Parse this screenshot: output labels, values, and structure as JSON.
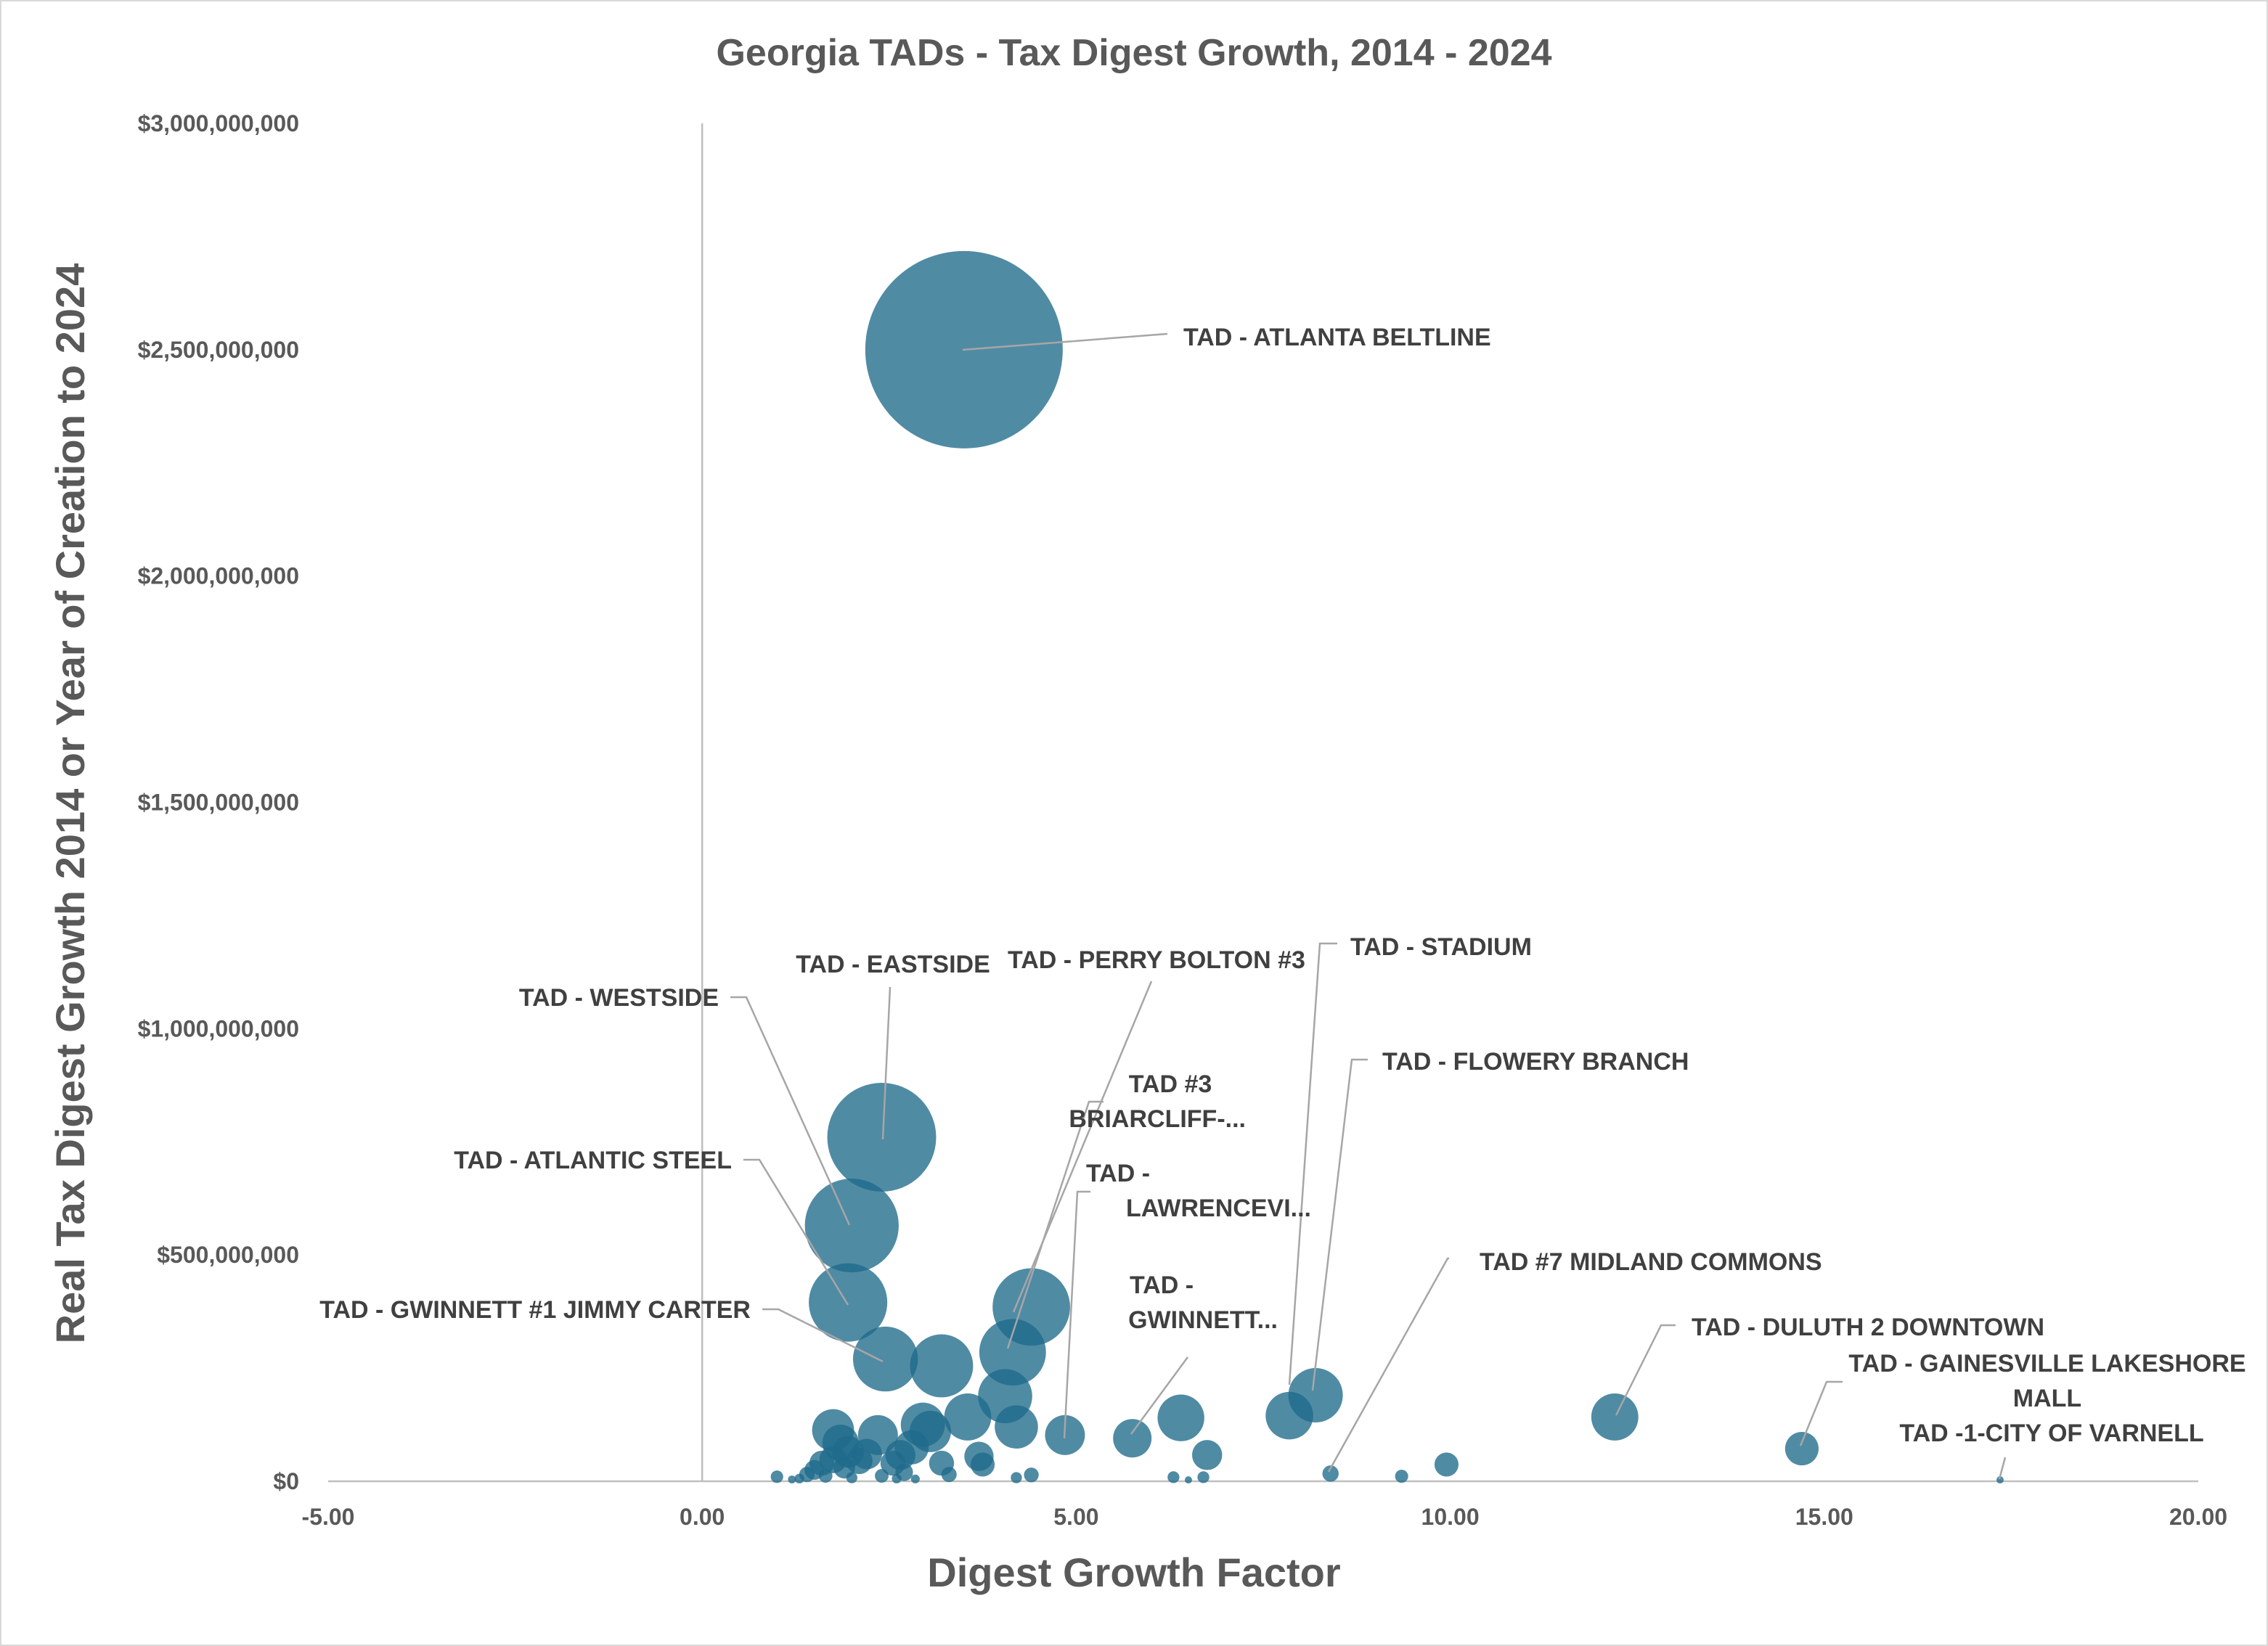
{
  "chart_data": {
    "type": "bubble",
    "title": "Georgia TADs - Tax Digest Growth, 2014 - 2024",
    "xlabel": "Digest Growth Factor",
    "ylabel": "Real Tax Digest Growth 2014 or Year of Creation to 2024",
    "xlim": [
      -5,
      20
    ],
    "ylim": [
      0,
      3000000000
    ],
    "x_ticks": [
      "-5.00",
      "0.00",
      "5.00",
      "10.00",
      "15.00",
      "20.00"
    ],
    "y_ticks": [
      "$0",
      "$500,000,000",
      "$1,000,000,000",
      "$1,500,000,000",
      "$2,000,000,000",
      "$2,500,000,000",
      "$3,000,000,000"
    ],
    "color": "#1f6a8a",
    "labeled_points": [
      {
        "label": "TAD - ATLANTA BELTLINE",
        "x": 3.5,
        "y": 2500000000,
        "size": 2500000000
      },
      {
        "label": "TAD - EASTSIDE",
        "x": 2.4,
        "y": 760000000,
        "size": 760000000
      },
      {
        "label": "TAD - WESTSIDE",
        "x": 2.0,
        "y": 565000000,
        "size": 565000000
      },
      {
        "label": "TAD - ATLANTIC STEEL",
        "x": 1.95,
        "y": 395000000,
        "size": 395000000
      },
      {
        "label": "TAD - GWINNETT #1 JIMMY CARTER",
        "x": 2.45,
        "y": 270000000,
        "size": 270000000
      },
      {
        "label": "TAD - PERRY BOLTON #3",
        "x": 4.4,
        "y": 385000000,
        "size": 385000000
      },
      {
        "label": "TAD #3 BRIARCLIFF-...",
        "x": 4.15,
        "y": 285000000,
        "size": 285000000
      },
      {
        "label": "TAD - LAWRENCEVI...",
        "x": 4.85,
        "y": 102000000,
        "size": 102000000
      },
      {
        "label": "TAD - GWINNETT...",
        "x": 5.75,
        "y": 95000000,
        "size": 95000000
      },
      {
        "label": "TAD - STADIUM",
        "x": 7.85,
        "y": 145000000,
        "size": 145000000
      },
      {
        "label": "TAD - FLOWERY BRANCH",
        "x": 8.2,
        "y": 190000000,
        "size": 190000000
      },
      {
        "label": "TAD #7 MIDLAND COMMONS",
        "x": 8.4,
        "y": 17000000,
        "size": 17000000
      },
      {
        "label": "TAD - DULUTH 2 DOWNTOWN",
        "x": 12.2,
        "y": 142000000,
        "size": 142000000
      },
      {
        "label": "TAD - GAINESVILLE LAKESHORE MALL",
        "x": 14.7,
        "y": 72000000,
        "size": 72000000
      },
      {
        "label": "TAD -1-CITY OF VARNELL",
        "x": 17.35,
        "y": 3000000,
        "size": 3000000
      }
    ],
    "other_points": [
      {
        "x": 3.2,
        "y": 255000000,
        "size": 255000000
      },
      {
        "x": 4.05,
        "y": 188000000,
        "size": 188000000
      },
      {
        "x": 4.2,
        "y": 120000000,
        "size": 120000000
      },
      {
        "x": 3.55,
        "y": 142000000,
        "size": 142000000
      },
      {
        "x": 6.4,
        "y": 140000000,
        "size": 140000000
      },
      {
        "x": 6.75,
        "y": 58000000,
        "size": 58000000
      },
      {
        "x": 9.95,
        "y": 37000000,
        "size": 37000000
      },
      {
        "x": 9.35,
        "y": 11000000,
        "size": 11000000
      },
      {
        "x": 6.3,
        "y": 9000000,
        "size": 9000000
      },
      {
        "x": 6.5,
        "y": 3000000,
        "size": 3000000
      },
      {
        "x": 6.7,
        "y": 9000000,
        "size": 9000000
      },
      {
        "x": 4.4,
        "y": 14000000,
        "size": 14000000
      },
      {
        "x": 4.2,
        "y": 8000000,
        "size": 8000000
      },
      {
        "x": 3.75,
        "y": 37000000,
        "size": 37000000
      },
      {
        "x": 3.7,
        "y": 55000000,
        "size": 55000000
      },
      {
        "x": 3.2,
        "y": 40000000,
        "size": 40000000
      },
      {
        "x": 3.3,
        "y": 15000000,
        "size": 15000000
      },
      {
        "x": 2.95,
        "y": 125000000,
        "size": 125000000
      },
      {
        "x": 3.05,
        "y": 110000000,
        "size": 110000000
      },
      {
        "x": 2.8,
        "y": 75000000,
        "size": 75000000
      },
      {
        "x": 2.65,
        "y": 58000000,
        "size": 58000000
      },
      {
        "x": 2.55,
        "y": 40000000,
        "size": 40000000
      },
      {
        "x": 2.7,
        "y": 20000000,
        "size": 20000000
      },
      {
        "x": 2.85,
        "y": 5000000,
        "size": 5000000
      },
      {
        "x": 2.35,
        "y": 102000000,
        "size": 102000000
      },
      {
        "x": 2.2,
        "y": 60000000,
        "size": 60000000
      },
      {
        "x": 1.75,
        "y": 113000000,
        "size": 113000000
      },
      {
        "x": 1.85,
        "y": 85000000,
        "size": 85000000
      },
      {
        "x": 1.95,
        "y": 65000000,
        "size": 65000000
      },
      {
        "x": 2.1,
        "y": 45000000,
        "size": 45000000
      },
      {
        "x": 1.9,
        "y": 30000000,
        "size": 30000000
      },
      {
        "x": 1.75,
        "y": 48000000,
        "size": 48000000
      },
      {
        "x": 1.6,
        "y": 40000000,
        "size": 40000000
      },
      {
        "x": 1.5,
        "y": 25000000,
        "size": 25000000
      },
      {
        "x": 1.4,
        "y": 15000000,
        "size": 15000000
      },
      {
        "x": 1.3,
        "y": 6000000,
        "size": 6000000
      },
      {
        "x": 1.0,
        "y": 10000000,
        "size": 10000000
      },
      {
        "x": 1.2,
        "y": 4000000,
        "size": 4000000
      },
      {
        "x": 1.65,
        "y": 12000000,
        "size": 12000000
      },
      {
        "x": 2.0,
        "y": 8000000,
        "size": 8000000
      },
      {
        "x": 2.4,
        "y": 12000000,
        "size": 12000000
      },
      {
        "x": 2.6,
        "y": 6000000,
        "size": 6000000
      }
    ]
  }
}
